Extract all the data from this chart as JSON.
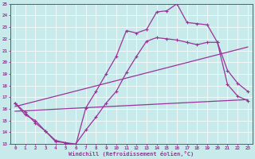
{
  "xlabel": "Windchill (Refroidissement éolien,°C)",
  "bg_color": "#c8eaea",
  "line_color": "#993399",
  "xlim": [
    -0.5,
    23.5
  ],
  "ylim": [
    13,
    25
  ],
  "xticks": [
    0,
    1,
    2,
    3,
    4,
    5,
    6,
    7,
    8,
    9,
    10,
    11,
    12,
    13,
    14,
    15,
    16,
    17,
    18,
    19,
    20,
    21,
    22,
    23
  ],
  "yticks": [
    13,
    14,
    15,
    16,
    17,
    18,
    19,
    20,
    21,
    22,
    23,
    24,
    25
  ],
  "line1_x": [
    0,
    1,
    2,
    3,
    4,
    5,
    6,
    7,
    8,
    9,
    10,
    11,
    12,
    13,
    14,
    15,
    16,
    17,
    18,
    19,
    20,
    21,
    22,
    23
  ],
  "line1_y": [
    16.5,
    15.7,
    14.8,
    14.1,
    13.3,
    13.1,
    12.9,
    16.1,
    17.5,
    19.0,
    20.5,
    22.7,
    22.5,
    22.8,
    24.3,
    24.4,
    25.0,
    23.4,
    23.3,
    23.2,
    21.7,
    18.1,
    17.1,
    16.7
  ],
  "line2_x": [
    0,
    1,
    2,
    3,
    4,
    5,
    6,
    7,
    8,
    9,
    10,
    11,
    12,
    13,
    14,
    15,
    16,
    17,
    18,
    19,
    20,
    21,
    22,
    23
  ],
  "line2_y": [
    16.5,
    15.5,
    15.0,
    14.1,
    13.2,
    13.1,
    13.0,
    14.2,
    15.3,
    16.5,
    17.5,
    19.1,
    20.5,
    21.8,
    22.1,
    22.0,
    21.9,
    21.7,
    21.5,
    21.7,
    21.7,
    19.3,
    18.2,
    17.5
  ],
  "line3_x": [
    0,
    23
  ],
  "line3_y": [
    15.8,
    16.8
  ],
  "line4_x": [
    0,
    23
  ],
  "line4_y": [
    16.2,
    21.3
  ]
}
